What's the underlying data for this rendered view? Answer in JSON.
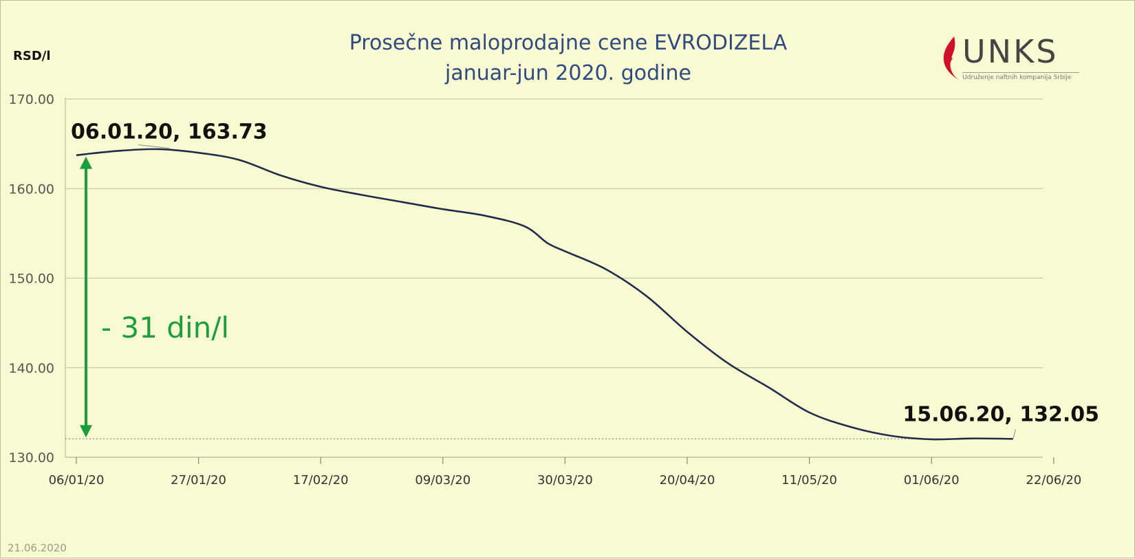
{
  "chart_data": {
    "type": "line",
    "title": "Prosečne maloprodajne cene EVRODIZELA",
    "subtitle": "januar-jun 2020. godine",
    "ylabel": "RSD/l",
    "xlabel": "",
    "ylim": [
      130,
      170
    ],
    "yticks": [
      "130.00",
      "140.00",
      "150.00",
      "160.00",
      "170.00"
    ],
    "xlim": [
      "2020-01-06",
      "2020-06-29"
    ],
    "xticks": [
      "06/01/20",
      "27/01/20",
      "17/02/20",
      "09/03/20",
      "30/03/20",
      "20/04/20",
      "11/05/20",
      "01/06/20",
      "22/06/20"
    ],
    "grid": true,
    "legend": "none",
    "series": [
      {
        "color": "#1f2d4d",
        "points": [
          [
            "2020-01-06",
            163.73
          ],
          [
            "2020-01-13",
            164.2
          ],
          [
            "2020-01-20",
            164.4
          ],
          [
            "2020-01-27",
            164.0
          ],
          [
            "2020-02-03",
            163.2
          ],
          [
            "2020-02-10",
            161.5
          ],
          [
            "2020-02-17",
            160.2
          ],
          [
            "2020-02-24",
            159.3
          ],
          [
            "2020-03-02",
            158.5
          ],
          [
            "2020-03-09",
            157.7
          ],
          [
            "2020-03-16",
            157.0
          ],
          [
            "2020-03-23",
            155.8
          ],
          [
            "2020-03-27",
            153.9
          ],
          [
            "2020-03-30",
            153.0
          ],
          [
            "2020-04-06",
            151.0
          ],
          [
            "2020-04-13",
            148.0
          ],
          [
            "2020-04-20",
            144.0
          ],
          [
            "2020-04-27",
            140.5
          ],
          [
            "2020-05-04",
            137.8
          ],
          [
            "2020-05-11",
            135.0
          ],
          [
            "2020-05-18",
            133.4
          ],
          [
            "2020-05-25",
            132.4
          ],
          [
            "2020-06-01",
            132.0
          ],
          [
            "2020-06-08",
            132.1
          ],
          [
            "2020-06-15",
            132.05
          ]
        ]
      }
    ],
    "reference_line": {
      "y": 132.05,
      "color": "#999999",
      "style": "dotted"
    },
    "annotations": [
      {
        "text": "06.01.20, 163.73",
        "x": "2020-01-06",
        "y": 163.73
      },
      {
        "text": "15.06.20, 132.05",
        "x": "2020-06-15",
        "y": 132.05
      },
      {
        "text": "- 31 din/l",
        "color": "#1a9e3e"
      }
    ],
    "arrow": {
      "from_y": 163.73,
      "to_y": 132.05,
      "x": "2020-01-06",
      "color": "#1a9e3e"
    }
  },
  "logo": {
    "text": "UNKS",
    "subtitle": "Udruženje naftnih kompanija Srbije",
    "color": "#444444",
    "flame_color": "#d0112b"
  },
  "footer": {
    "date": "21.06.2020"
  }
}
